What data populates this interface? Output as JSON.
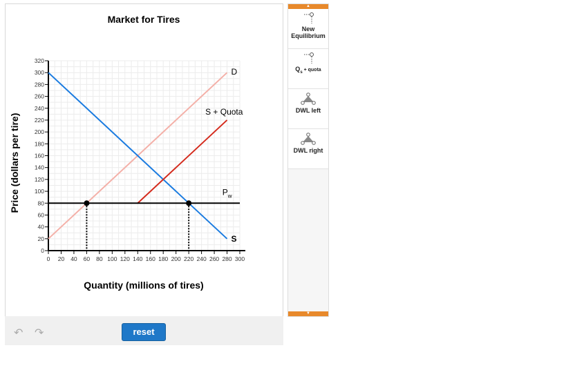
{
  "chart_data": {
    "type": "line",
    "title": "Market for Tires",
    "xlabel": "Quantity (millions of tires)",
    "ylabel": "Price (dollars per tire)",
    "xlim": [
      0,
      300
    ],
    "ylim": [
      0,
      320
    ],
    "xticks": [
      0,
      20,
      40,
      60,
      80,
      100,
      120,
      140,
      160,
      180,
      200,
      220,
      240,
      260,
      280,
      300
    ],
    "yticks": [
      0,
      20,
      40,
      60,
      80,
      100,
      120,
      140,
      160,
      180,
      200,
      220,
      240,
      260,
      280,
      300,
      320
    ],
    "grid": true,
    "series": [
      {
        "name": "D",
        "color": "#1a7be0",
        "points": [
          [
            0,
            300
          ],
          [
            280,
            20
          ]
        ]
      },
      {
        "name": "S",
        "color": "#f4b0a8",
        "points": [
          [
            0,
            20
          ],
          [
            280,
            300
          ]
        ]
      },
      {
        "name": "S + Quota",
        "color": "#d42a1c",
        "points": [
          [
            140,
            80
          ],
          [
            280,
            220
          ]
        ]
      },
      {
        "name": "P",
        "sub": "w",
        "color": "#000000",
        "points": [
          [
            0,
            80
          ],
          [
            300,
            80
          ]
        ]
      }
    ],
    "points": [
      [
        60,
        80
      ],
      [
        220,
        80
      ]
    ]
  },
  "palette": {
    "items": [
      {
        "label": "New Equilibrium",
        "icon": "point-drop-icon"
      },
      {
        "label": "Q",
        "sub": "s",
        "suffix": " + quota",
        "icon": "point-drop-icon"
      },
      {
        "label": "DWL left",
        "icon": "triangle-icon"
      },
      {
        "label": "DWL right",
        "icon": "triangle-icon"
      }
    ]
  },
  "toolbar": {
    "reset": "reset"
  }
}
